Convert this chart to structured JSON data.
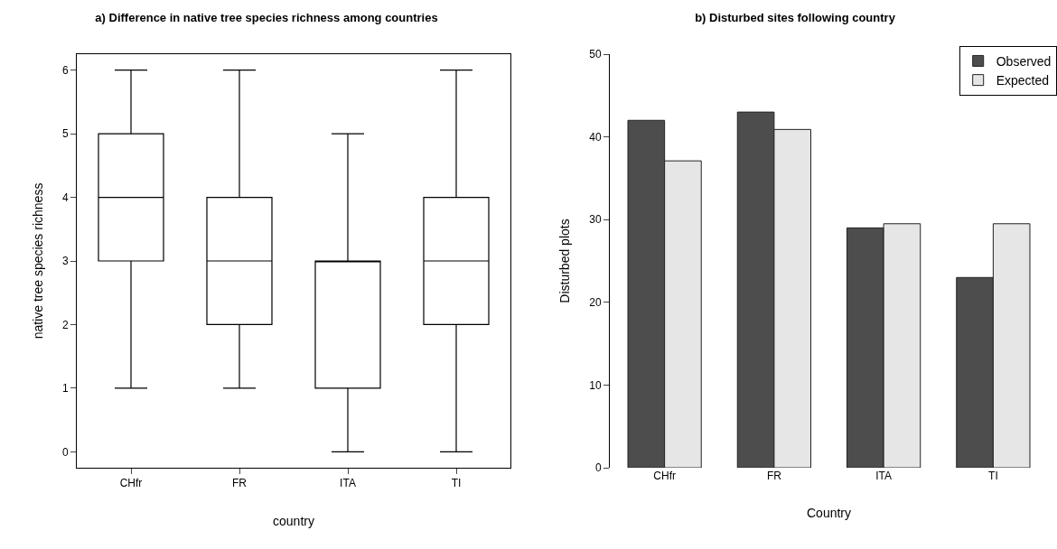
{
  "chart_data": [
    {
      "type": "box",
      "title": "a) Difference in native tree species richness among countries",
      "xlabel": "country",
      "ylabel": "native tree species richness",
      "categories": [
        "CHfr",
        "FR",
        "ITA",
        "TI"
      ],
      "boxes": [
        {
          "low": 1,
          "q1": 3,
          "median": 4,
          "q3": 5,
          "high": 6
        },
        {
          "low": 1,
          "q1": 2,
          "median": 3,
          "q3": 4,
          "high": 6
        },
        {
          "low": 0,
          "q1": 1,
          "median": 3,
          "q3": 3,
          "high": 5
        },
        {
          "low": 0,
          "q1": 2,
          "median": 3,
          "q3": 4,
          "high": 6
        }
      ],
      "color": "#000000",
      "ylim": [
        -0.25,
        6.25
      ],
      "yticks": [
        0,
        1,
        2,
        3,
        4,
        5,
        6
      ],
      "grid": false,
      "legend": false
    },
    {
      "type": "bar",
      "title": "b) Disturbed sites following country",
      "xlabel": "Country",
      "ylabel": "Disturbed plots",
      "categories": [
        "CHfr",
        "FR",
        "ITA",
        "TI"
      ],
      "series": [
        {
          "name": "Observed",
          "color": "#4d4d4d",
          "values": [
            42,
            43,
            29,
            23
          ]
        },
        {
          "name": "Expected",
          "color": "#e6e6e6",
          "values": [
            37.1,
            40.9,
            29.5,
            29.5
          ]
        }
      ],
      "ylim": [
        0,
        50
      ],
      "yticks": [
        0,
        10,
        20,
        30,
        40,
        50
      ],
      "grid": false,
      "legend": "top right"
    }
  ]
}
